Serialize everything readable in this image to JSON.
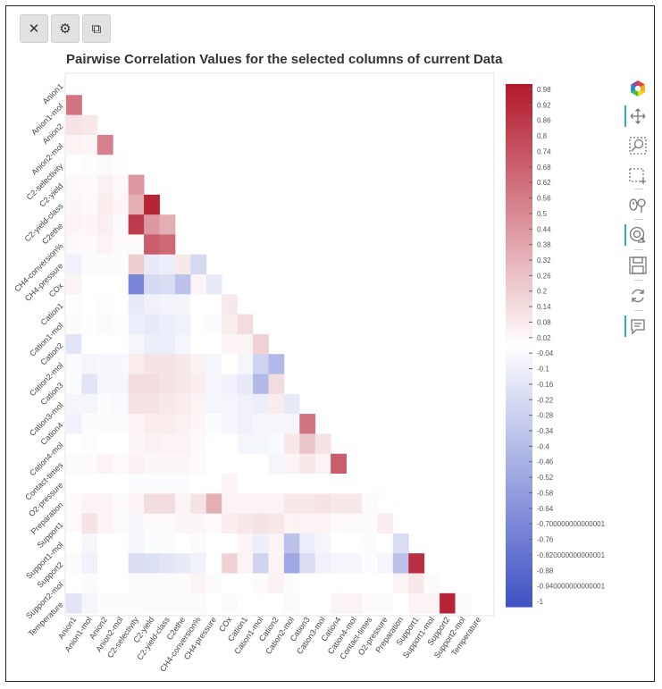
{
  "buttons": {
    "close_label": "✕",
    "settings_label": "⚙",
    "copy_label": "⧉"
  },
  "icons": {
    "close": "close-icon",
    "settings": "wrench-icon",
    "copy": "copy-icon"
  },
  "toolbar_icons": [
    "bokeh-logo-icon",
    "pan-icon",
    "box-zoom-icon",
    "box-select-icon",
    "wheel-zoom-icon",
    "tap-icon",
    "save-icon",
    "reset-icon",
    "hover-icon"
  ],
  "chart_data": {
    "type": "heatmap",
    "title": "Pairwise Correlation Values for the selected columns of current Data",
    "variables": [
      "Anion1",
      "Anion1-mol",
      "Anion2",
      "Anion2-mol",
      "C2-selectivity",
      "C2-yield",
      "C2-yield-class",
      "C2ethe",
      "CH4-conversion%",
      "CH4-pressure",
      "COx",
      "Cation1",
      "Cation1-mol",
      "Cation2",
      "Cation2-mol",
      "Cation3",
      "Cation3-mol",
      "Cation4",
      "Cation4-mol",
      "Contact-times",
      "O2-pressure",
      "Preparation",
      "Support1",
      "Support1-mol",
      "Support2",
      "Support2-mol",
      "Temperature"
    ],
    "value_range": [
      -1,
      1
    ],
    "matrix_note": "lower triangle only; cells shown are pairwise correlations",
    "cells": [
      [
        1,
        0,
        0.6
      ],
      [
        2,
        0,
        0.12
      ],
      [
        2,
        1,
        0.1
      ],
      [
        3,
        0,
        0.05
      ],
      [
        3,
        1,
        0.04
      ],
      [
        3,
        2,
        0.55
      ],
      [
        4,
        0,
        0.0
      ],
      [
        4,
        1,
        0.01
      ],
      [
        4,
        2,
        0.02
      ],
      [
        4,
        3,
        0.01
      ],
      [
        5,
        0,
        0.03
      ],
      [
        5,
        1,
        0.02
      ],
      [
        5,
        2,
        0.06
      ],
      [
        5,
        3,
        0.03
      ],
      [
        5,
        4,
        0.45
      ],
      [
        6,
        0,
        0.04
      ],
      [
        6,
        1,
        0.03
      ],
      [
        6,
        2,
        0.08
      ],
      [
        6,
        3,
        0.04
      ],
      [
        6,
        4,
        0.35
      ],
      [
        6,
        5,
        0.95
      ],
      [
        7,
        0,
        0.05
      ],
      [
        7,
        1,
        0.04
      ],
      [
        7,
        2,
        0.07
      ],
      [
        7,
        3,
        -0.03
      ],
      [
        7,
        4,
        0.85
      ],
      [
        7,
        5,
        0.45
      ],
      [
        7,
        6,
        0.35
      ],
      [
        8,
        0,
        0.03
      ],
      [
        8,
        1,
        0.02
      ],
      [
        8,
        2,
        0.05
      ],
      [
        8,
        3,
        0.02
      ],
      [
        8,
        4,
        0.02
      ],
      [
        8,
        5,
        0.7
      ],
      [
        8,
        6,
        0.65
      ],
      [
        9,
        0,
        -0.08
      ],
      [
        9,
        1,
        -0.02
      ],
      [
        9,
        2,
        -0.02
      ],
      [
        9,
        3,
        -0.02
      ],
      [
        9,
        4,
        0.22
      ],
      [
        9,
        5,
        -0.12
      ],
      [
        9,
        6,
        -0.1
      ],
      [
        9,
        7,
        0.1
      ],
      [
        9,
        8,
        -0.22
      ],
      [
        10,
        0,
        0.05
      ],
      [
        10,
        1,
        0.0
      ],
      [
        10,
        2,
        0.0
      ],
      [
        10,
        3,
        0.0
      ],
      [
        10,
        4,
        -0.7
      ],
      [
        10,
        5,
        -0.22
      ],
      [
        10,
        6,
        -0.2
      ],
      [
        10,
        7,
        -0.35
      ],
      [
        10,
        8,
        0.05
      ],
      [
        10,
        9,
        -0.12
      ],
      [
        11,
        0,
        0.01
      ],
      [
        11,
        1,
        0.0
      ],
      [
        11,
        2,
        0.01
      ],
      [
        11,
        3,
        0.0
      ],
      [
        11,
        4,
        -0.12
      ],
      [
        11,
        5,
        -0.08
      ],
      [
        11,
        6,
        -0.06
      ],
      [
        11,
        7,
        -0.06
      ],
      [
        11,
        8,
        0.0
      ],
      [
        11,
        9,
        0.0
      ],
      [
        11,
        10,
        0.1
      ],
      [
        12,
        0,
        0.02
      ],
      [
        12,
        1,
        0.01
      ],
      [
        12,
        2,
        0.02
      ],
      [
        12,
        3,
        0.01
      ],
      [
        12,
        4,
        -0.1
      ],
      [
        12,
        5,
        -0.12
      ],
      [
        12,
        6,
        -0.1
      ],
      [
        12,
        7,
        -0.08
      ],
      [
        12,
        8,
        0.0
      ],
      [
        12,
        9,
        -0.02
      ],
      [
        12,
        10,
        0.08
      ],
      [
        12,
        11,
        0.15
      ],
      [
        13,
        0,
        -0.15
      ],
      [
        13,
        1,
        0.0
      ],
      [
        13,
        2,
        0.0
      ],
      [
        13,
        3,
        0.0
      ],
      [
        13,
        4,
        -0.05
      ],
      [
        13,
        5,
        -0.1
      ],
      [
        13,
        6,
        -0.1
      ],
      [
        13,
        7,
        -0.05
      ],
      [
        13,
        8,
        0.0
      ],
      [
        13,
        9,
        0.0
      ],
      [
        13,
        10,
        0.05
      ],
      [
        13,
        11,
        0.05
      ],
      [
        13,
        12,
        0.2
      ],
      [
        14,
        0,
        0.02
      ],
      [
        14,
        1,
        -0.05
      ],
      [
        14,
        2,
        -0.04
      ],
      [
        14,
        3,
        -0.04
      ],
      [
        14,
        4,
        0.08
      ],
      [
        14,
        5,
        0.12
      ],
      [
        14,
        6,
        0.12
      ],
      [
        14,
        7,
        0.1
      ],
      [
        14,
        8,
        0.06
      ],
      [
        14,
        9,
        -0.05
      ],
      [
        14,
        10,
        0.0
      ],
      [
        14,
        11,
        -0.05
      ],
      [
        14,
        12,
        -0.25
      ],
      [
        14,
        13,
        -0.4
      ],
      [
        15,
        0,
        -0.02
      ],
      [
        15,
        1,
        -0.15
      ],
      [
        15,
        2,
        -0.05
      ],
      [
        15,
        3,
        -0.05
      ],
      [
        15,
        4,
        0.15
      ],
      [
        15,
        5,
        0.15
      ],
      [
        15,
        6,
        0.12
      ],
      [
        15,
        7,
        0.1
      ],
      [
        15,
        8,
        0.08
      ],
      [
        15,
        9,
        -0.05
      ],
      [
        15,
        10,
        -0.08
      ],
      [
        15,
        11,
        -0.12
      ],
      [
        15,
        12,
        -0.4
      ],
      [
        15,
        13,
        0.15
      ],
      [
        16,
        0,
        -0.05
      ],
      [
        16,
        1,
        -0.05
      ],
      [
        16,
        2,
        -0.02
      ],
      [
        16,
        3,
        -0.03
      ],
      [
        16,
        4,
        0.12
      ],
      [
        16,
        5,
        0.12
      ],
      [
        16,
        6,
        0.1
      ],
      [
        16,
        7,
        0.08
      ],
      [
        16,
        8,
        0.05
      ],
      [
        16,
        9,
        -0.05
      ],
      [
        16,
        10,
        -0.05
      ],
      [
        16,
        11,
        -0.08
      ],
      [
        16,
        12,
        -0.1
      ],
      [
        16,
        13,
        0.08
      ],
      [
        16,
        14,
        -0.12
      ],
      [
        17,
        0,
        -0.08
      ],
      [
        17,
        1,
        -0.02
      ],
      [
        17,
        2,
        -0.02
      ],
      [
        17,
        3,
        -0.02
      ],
      [
        17,
        4,
        0.05
      ],
      [
        17,
        5,
        0.08
      ],
      [
        17,
        6,
        0.08
      ],
      [
        17,
        7,
        0.06
      ],
      [
        17,
        8,
        0.04
      ],
      [
        17,
        9,
        -0.02
      ],
      [
        17,
        10,
        -0.05
      ],
      [
        17,
        11,
        -0.08
      ],
      [
        17,
        12,
        -0.05
      ],
      [
        17,
        13,
        -0.05
      ],
      [
        17,
        14,
        -0.05
      ],
      [
        17,
        15,
        0.6
      ],
      [
        18,
        0,
        0.0
      ],
      [
        18,
        1,
        0.01
      ],
      [
        18,
        2,
        0.0
      ],
      [
        18,
        3,
        0.0
      ],
      [
        18,
        4,
        0.04
      ],
      [
        18,
        5,
        0.06
      ],
      [
        18,
        6,
        0.05
      ],
      [
        18,
        7,
        0.05
      ],
      [
        18,
        8,
        0.03
      ],
      [
        18,
        9,
        0.0
      ],
      [
        18,
        10,
        0.0
      ],
      [
        18,
        11,
        -0.05
      ],
      [
        18,
        12,
        -0.05
      ],
      [
        18,
        13,
        -0.03
      ],
      [
        18,
        14,
        0.1
      ],
      [
        18,
        15,
        0.25
      ],
      [
        18,
        16,
        0.12
      ],
      [
        19,
        0,
        0.02
      ],
      [
        19,
        1,
        0.02
      ],
      [
        19,
        2,
        0.05
      ],
      [
        19,
        3,
        0.02
      ],
      [
        19,
        4,
        0.06
      ],
      [
        19,
        5,
        0.04
      ],
      [
        19,
        6,
        0.04
      ],
      [
        19,
        7,
        0.04
      ],
      [
        19,
        8,
        0.02
      ],
      [
        19,
        9,
        0.0
      ],
      [
        19,
        10,
        0.0
      ],
      [
        19,
        11,
        0.0
      ],
      [
        19,
        12,
        0.0
      ],
      [
        19,
        13,
        -0.05
      ],
      [
        19,
        14,
        0.05
      ],
      [
        19,
        15,
        0.1
      ],
      [
        19,
        16,
        0.05
      ],
      [
        19,
        17,
        0.7
      ],
      [
        20,
        0,
        0.0
      ],
      [
        20,
        1,
        0.0
      ],
      [
        20,
        2,
        0.0
      ],
      [
        20,
        3,
        0.0
      ],
      [
        20,
        4,
        -0.02
      ],
      [
        20,
        5,
        -0.02
      ],
      [
        20,
        6,
        -0.02
      ],
      [
        20,
        7,
        -0.02
      ],
      [
        20,
        8,
        0.0
      ],
      [
        20,
        9,
        0.0
      ],
      [
        20,
        10,
        0.05
      ],
      [
        20,
        11,
        0.0
      ],
      [
        20,
        12,
        0.0
      ],
      [
        20,
        13,
        0.0
      ],
      [
        20,
        14,
        0.0
      ],
      [
        20,
        15,
        0.0
      ],
      [
        20,
        16,
        0.0
      ],
      [
        20,
        17,
        0.0
      ],
      [
        20,
        18,
        0.0
      ],
      [
        21,
        0,
        0.02
      ],
      [
        21,
        1,
        0.05
      ],
      [
        21,
        2,
        0.05
      ],
      [
        21,
        3,
        0.02
      ],
      [
        21,
        4,
        0.05
      ],
      [
        21,
        5,
        0.15
      ],
      [
        21,
        6,
        0.15
      ],
      [
        21,
        7,
        0.05
      ],
      [
        21,
        8,
        0.12
      ],
      [
        21,
        9,
        0.35
      ],
      [
        21,
        10,
        0.05
      ],
      [
        21,
        11,
        0.05
      ],
      [
        21,
        12,
        0.05
      ],
      [
        21,
        13,
        0.05
      ],
      [
        21,
        14,
        0.1
      ],
      [
        21,
        15,
        0.1
      ],
      [
        21,
        16,
        0.12
      ],
      [
        21,
        17,
        0.1
      ],
      [
        21,
        18,
        0.1
      ],
      [
        21,
        19,
        0.02
      ],
      [
        22,
        0,
        0.02
      ],
      [
        22,
        1,
        0.12
      ],
      [
        22,
        2,
        0.05
      ],
      [
        22,
        3,
        0.02
      ],
      [
        22,
        4,
        -0.05
      ],
      [
        22,
        5,
        0.02
      ],
      [
        22,
        6,
        0.02
      ],
      [
        22,
        7,
        0.04
      ],
      [
        22,
        8,
        0.04
      ],
      [
        22,
        9,
        0.02
      ],
      [
        22,
        10,
        0.08
      ],
      [
        22,
        11,
        0.1
      ],
      [
        22,
        12,
        0.12
      ],
      [
        22,
        13,
        0.1
      ],
      [
        22,
        14,
        0.05
      ],
      [
        22,
        15,
        0.05
      ],
      [
        22,
        16,
        0.05
      ],
      [
        22,
        17,
        0.02
      ],
      [
        22,
        18,
        0.02
      ],
      [
        22,
        19,
        0.02
      ],
      [
        22,
        20,
        0.08
      ],
      [
        23,
        0,
        0.0
      ],
      [
        23,
        1,
        -0.05
      ],
      [
        23,
        2,
        0.0
      ],
      [
        23,
        3,
        0.0
      ],
      [
        23,
        4,
        -0.05
      ],
      [
        23,
        5,
        -0.02
      ],
      [
        23,
        6,
        -0.02
      ],
      [
        23,
        7,
        0.0
      ],
      [
        23,
        8,
        0.02
      ],
      [
        23,
        9,
        0.0
      ],
      [
        23,
        10,
        0.0
      ],
      [
        23,
        11,
        0.05
      ],
      [
        23,
        12,
        -0.1
      ],
      [
        23,
        13,
        0.05
      ],
      [
        23,
        14,
        -0.35
      ],
      [
        23,
        15,
        -0.1
      ],
      [
        23,
        16,
        -0.05
      ],
      [
        23,
        17,
        0.0
      ],
      [
        23,
        18,
        0.0
      ],
      [
        23,
        19,
        -0.02
      ],
      [
        23,
        20,
        0.0
      ],
      [
        23,
        21,
        -0.2
      ],
      [
        24,
        0,
        0.02
      ],
      [
        24,
        1,
        -0.08
      ],
      [
        24,
        2,
        0.0
      ],
      [
        24,
        3,
        0.0
      ],
      [
        24,
        4,
        -0.2
      ],
      [
        24,
        5,
        -0.18
      ],
      [
        24,
        6,
        -0.15
      ],
      [
        24,
        7,
        -0.12
      ],
      [
        24,
        8,
        -0.08
      ],
      [
        24,
        9,
        0.0
      ],
      [
        24,
        10,
        0.2
      ],
      [
        24,
        11,
        0.05
      ],
      [
        24,
        12,
        -0.25
      ],
      [
        24,
        13,
        0.05
      ],
      [
        24,
        14,
        -0.5
      ],
      [
        24,
        15,
        -0.2
      ],
      [
        24,
        16,
        -0.08
      ],
      [
        24,
        17,
        -0.05
      ],
      [
        24,
        18,
        -0.05
      ],
      [
        24,
        19,
        -0.02
      ],
      [
        24,
        20,
        -0.05
      ],
      [
        24,
        21,
        -0.35
      ],
      [
        24,
        22,
        0.9
      ],
      [
        25,
        0,
        0.0
      ],
      [
        25,
        1,
        0.02
      ],
      [
        25,
        2,
        0.0
      ],
      [
        25,
        3,
        0.0
      ],
      [
        25,
        4,
        0.02
      ],
      [
        25,
        5,
        0.02
      ],
      [
        25,
        6,
        0.02
      ],
      [
        25,
        7,
        0.02
      ],
      [
        25,
        8,
        0.05
      ],
      [
        25,
        9,
        0.02
      ],
      [
        25,
        10,
        0.0
      ],
      [
        25,
        11,
        0.0
      ],
      [
        25,
        12,
        0.02
      ],
      [
        25,
        13,
        0.06
      ],
      [
        25,
        14,
        -0.02
      ],
      [
        25,
        15,
        0.0
      ],
      [
        25,
        16,
        0.0
      ],
      [
        25,
        17,
        0.0
      ],
      [
        25,
        18,
        0.0
      ],
      [
        25,
        19,
        0.0
      ],
      [
        25,
        20,
        0.0
      ],
      [
        25,
        21,
        0.05
      ],
      [
        25,
        22,
        0.1
      ],
      [
        25,
        23,
        0.02
      ],
      [
        26,
        0,
        -0.15
      ],
      [
        26,
        1,
        -0.05
      ],
      [
        26,
        2,
        -0.02
      ],
      [
        26,
        3,
        -0.02
      ],
      [
        26,
        4,
        -0.02
      ],
      [
        26,
        5,
        0.02
      ],
      [
        26,
        6,
        0.02
      ],
      [
        26,
        7,
        0.02
      ],
      [
        26,
        8,
        0.02
      ],
      [
        26,
        9,
        0.0
      ],
      [
        26,
        10,
        0.02
      ],
      [
        26,
        11,
        0.0
      ],
      [
        26,
        12,
        0.0
      ],
      [
        26,
        13,
        0.0
      ],
      [
        26,
        14,
        0.02
      ],
      [
        26,
        15,
        0.0
      ],
      [
        26,
        16,
        0.0
      ],
      [
        26,
        17,
        0.05
      ],
      [
        26,
        18,
        0.05
      ],
      [
        26,
        19,
        0.02
      ],
      [
        26,
        20,
        0.02
      ],
      [
        26,
        21,
        0.0
      ],
      [
        26,
        22,
        0.05
      ],
      [
        26,
        23,
        0.05
      ],
      [
        26,
        24,
        0.95
      ],
      [
        26,
        25,
        0.02
      ]
    ],
    "colorbar_ticks": [
      "0.98",
      "0.92",
      "0.86",
      "0.8",
      "0.74",
      "0.68",
      "0.62",
      "0.56",
      "0.5",
      "0.44",
      "0.38",
      "0.32",
      "0.26",
      "0.2",
      "0.14",
      "0.08",
      "0.02",
      "-0.04",
      "-0.1",
      "-0.16",
      "-0.22",
      "-0.28",
      "-0.34",
      "-0.4",
      "-0.46",
      "-0.52",
      "-0.58",
      "-0.64",
      "-0.700000000000001",
      "-0.76",
      "-0.820000000000001",
      "-0.88",
      "-0.940000000000001",
      "-1"
    ],
    "colors": {
      "high": "#b2182b",
      "mid": "#ffffff",
      "low": "#3f51c4"
    }
  }
}
